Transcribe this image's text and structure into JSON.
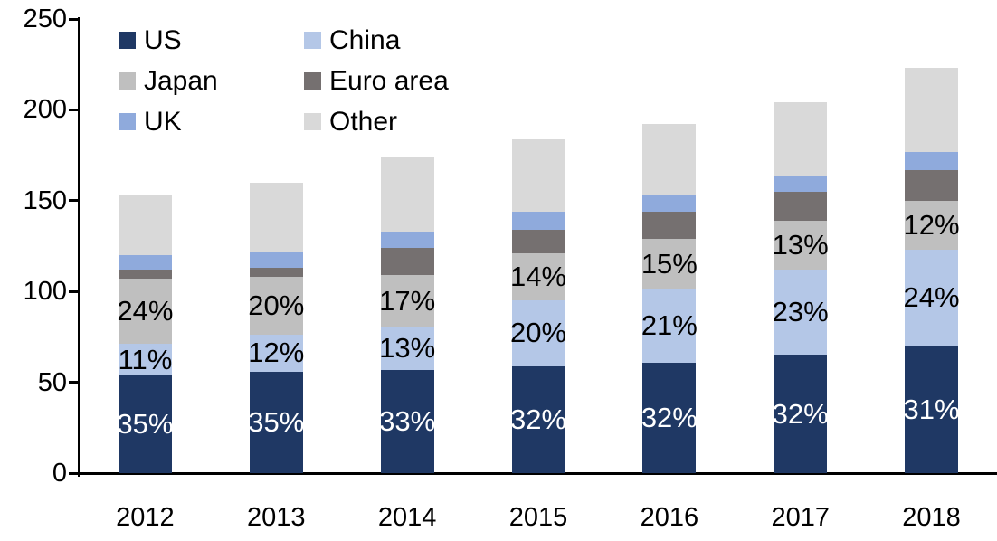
{
  "chart_data": {
    "type": "bar",
    "stacked": true,
    "title": "",
    "xlabel": "",
    "ylabel": "",
    "categories": [
      "2012",
      "2013",
      "2014",
      "2015",
      "2016",
      "2017",
      "2018"
    ],
    "series": [
      {
        "name": "US",
        "color": "#1f3864",
        "values": [
          54,
          56,
          57,
          59,
          61,
          65,
          70
        ],
        "labels": [
          "35%",
          "35%",
          "33%",
          "32%",
          "32%",
          "32%",
          "31%"
        ],
        "label_color": "#ffffff"
      },
      {
        "name": "China",
        "color": "#b4c7e7",
        "values": [
          17,
          20,
          23,
          36,
          40,
          47,
          53
        ],
        "labels": [
          "11%",
          "12%",
          "13%",
          "20%",
          "21%",
          "23%",
          "24%"
        ],
        "label_color": "#000000"
      },
      {
        "name": "Japan",
        "color": "#bfbfbf",
        "values": [
          36,
          32,
          29,
          26,
          28,
          27,
          27
        ],
        "labels": [
          "24%",
          "20%",
          "17%",
          "14%",
          "15%",
          "13%",
          "12%"
        ],
        "label_color": "#000000"
      },
      {
        "name": "Euro area",
        "color": "#757070",
        "values": [
          5,
          5,
          15,
          13,
          15,
          16,
          17
        ]
      },
      {
        "name": "UK",
        "color": "#8faadc",
        "values": [
          8,
          9,
          9,
          10,
          9,
          9,
          10
        ]
      },
      {
        "name": "Other",
        "color": "#d9d9d9",
        "values": [
          33,
          38,
          41,
          40,
          39,
          40,
          46
        ]
      }
    ],
    "totals": [
      153,
      160,
      174,
      184,
      192,
      204,
      223
    ],
    "ylim": [
      0,
      250
    ],
    "yticks": [
      0,
      50,
      100,
      150,
      200,
      250
    ],
    "grid": false,
    "axis_color": "#000000",
    "legend": {
      "position": "top-left",
      "columns": 2,
      "entries": [
        "US",
        "China",
        "Japan",
        "Euro area",
        "UK",
        "Other"
      ]
    }
  }
}
